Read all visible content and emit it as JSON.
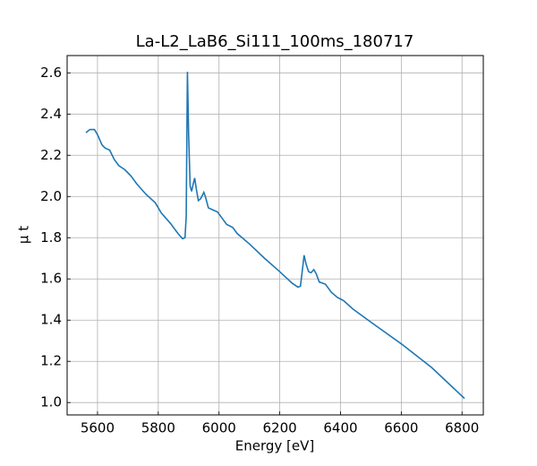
{
  "chart_data": {
    "type": "line",
    "title": "La-L2_LaB6_Si111_100ms_180717",
    "x_label": "Energy [eV]",
    "y_label": "μ t",
    "x": [
      5562,
      5575,
      5590,
      5600,
      5615,
      5625,
      5640,
      5655,
      5670,
      5690,
      5710,
      5730,
      5760,
      5790,
      5810,
      5840,
      5865,
      5880,
      5888,
      5892,
      5896,
      5900,
      5905,
      5910,
      5915,
      5920,
      5925,
      5932,
      5940,
      5950,
      5955,
      5965,
      5980,
      5995,
      6010,
      6025,
      6045,
      6060,
      6100,
      6150,
      6200,
      6240,
      6260,
      6268,
      6275,
      6280,
      6287,
      6295,
      6303,
      6312,
      6320,
      6330,
      6350,
      6370,
      6390,
      6410,
      6440,
      6500,
      6600,
      6700,
      6808
    ],
    "series": [
      {
        "name": "La-L2",
        "color": "#1f77b4",
        "values": [
          2.31,
          2.325,
          2.325,
          2.3,
          2.25,
          2.235,
          2.225,
          2.18,
          2.15,
          2.13,
          2.1,
          2.06,
          2.01,
          1.97,
          1.92,
          1.87,
          1.82,
          1.795,
          1.8,
          1.9,
          2.605,
          2.3,
          2.05,
          2.025,
          2.06,
          2.09,
          2.04,
          1.98,
          1.99,
          2.02,
          2.0,
          1.945,
          1.935,
          1.925,
          1.895,
          1.865,
          1.85,
          1.82,
          1.77,
          1.7,
          1.635,
          1.58,
          1.56,
          1.565,
          1.65,
          1.715,
          1.67,
          1.635,
          1.63,
          1.645,
          1.625,
          1.585,
          1.575,
          1.535,
          1.51,
          1.495,
          1.455,
          1.39,
          1.285,
          1.17,
          1.02
        ]
      }
    ],
    "xlim": [
      5500,
      6870
    ],
    "xticks": [
      5600,
      5800,
      6000,
      6200,
      6400,
      6600,
      6800
    ],
    "ylim": [
      0.94,
      2.684
    ],
    "yticks": [
      {
        "value": 1.0,
        "label": "1.0"
      },
      {
        "value": 1.2,
        "label": "1.2"
      },
      {
        "value": 1.4,
        "label": "1.4"
      },
      {
        "value": 1.6,
        "label": "1.6"
      },
      {
        "value": 1.8,
        "label": "1.8"
      },
      {
        "value": 2.0,
        "label": "2.0"
      },
      {
        "value": 2.2,
        "label": "2.2"
      },
      {
        "value": 2.4,
        "label": "2.4"
      },
      {
        "value": 2.6,
        "label": "2.6"
      }
    ],
    "grid": true
  }
}
